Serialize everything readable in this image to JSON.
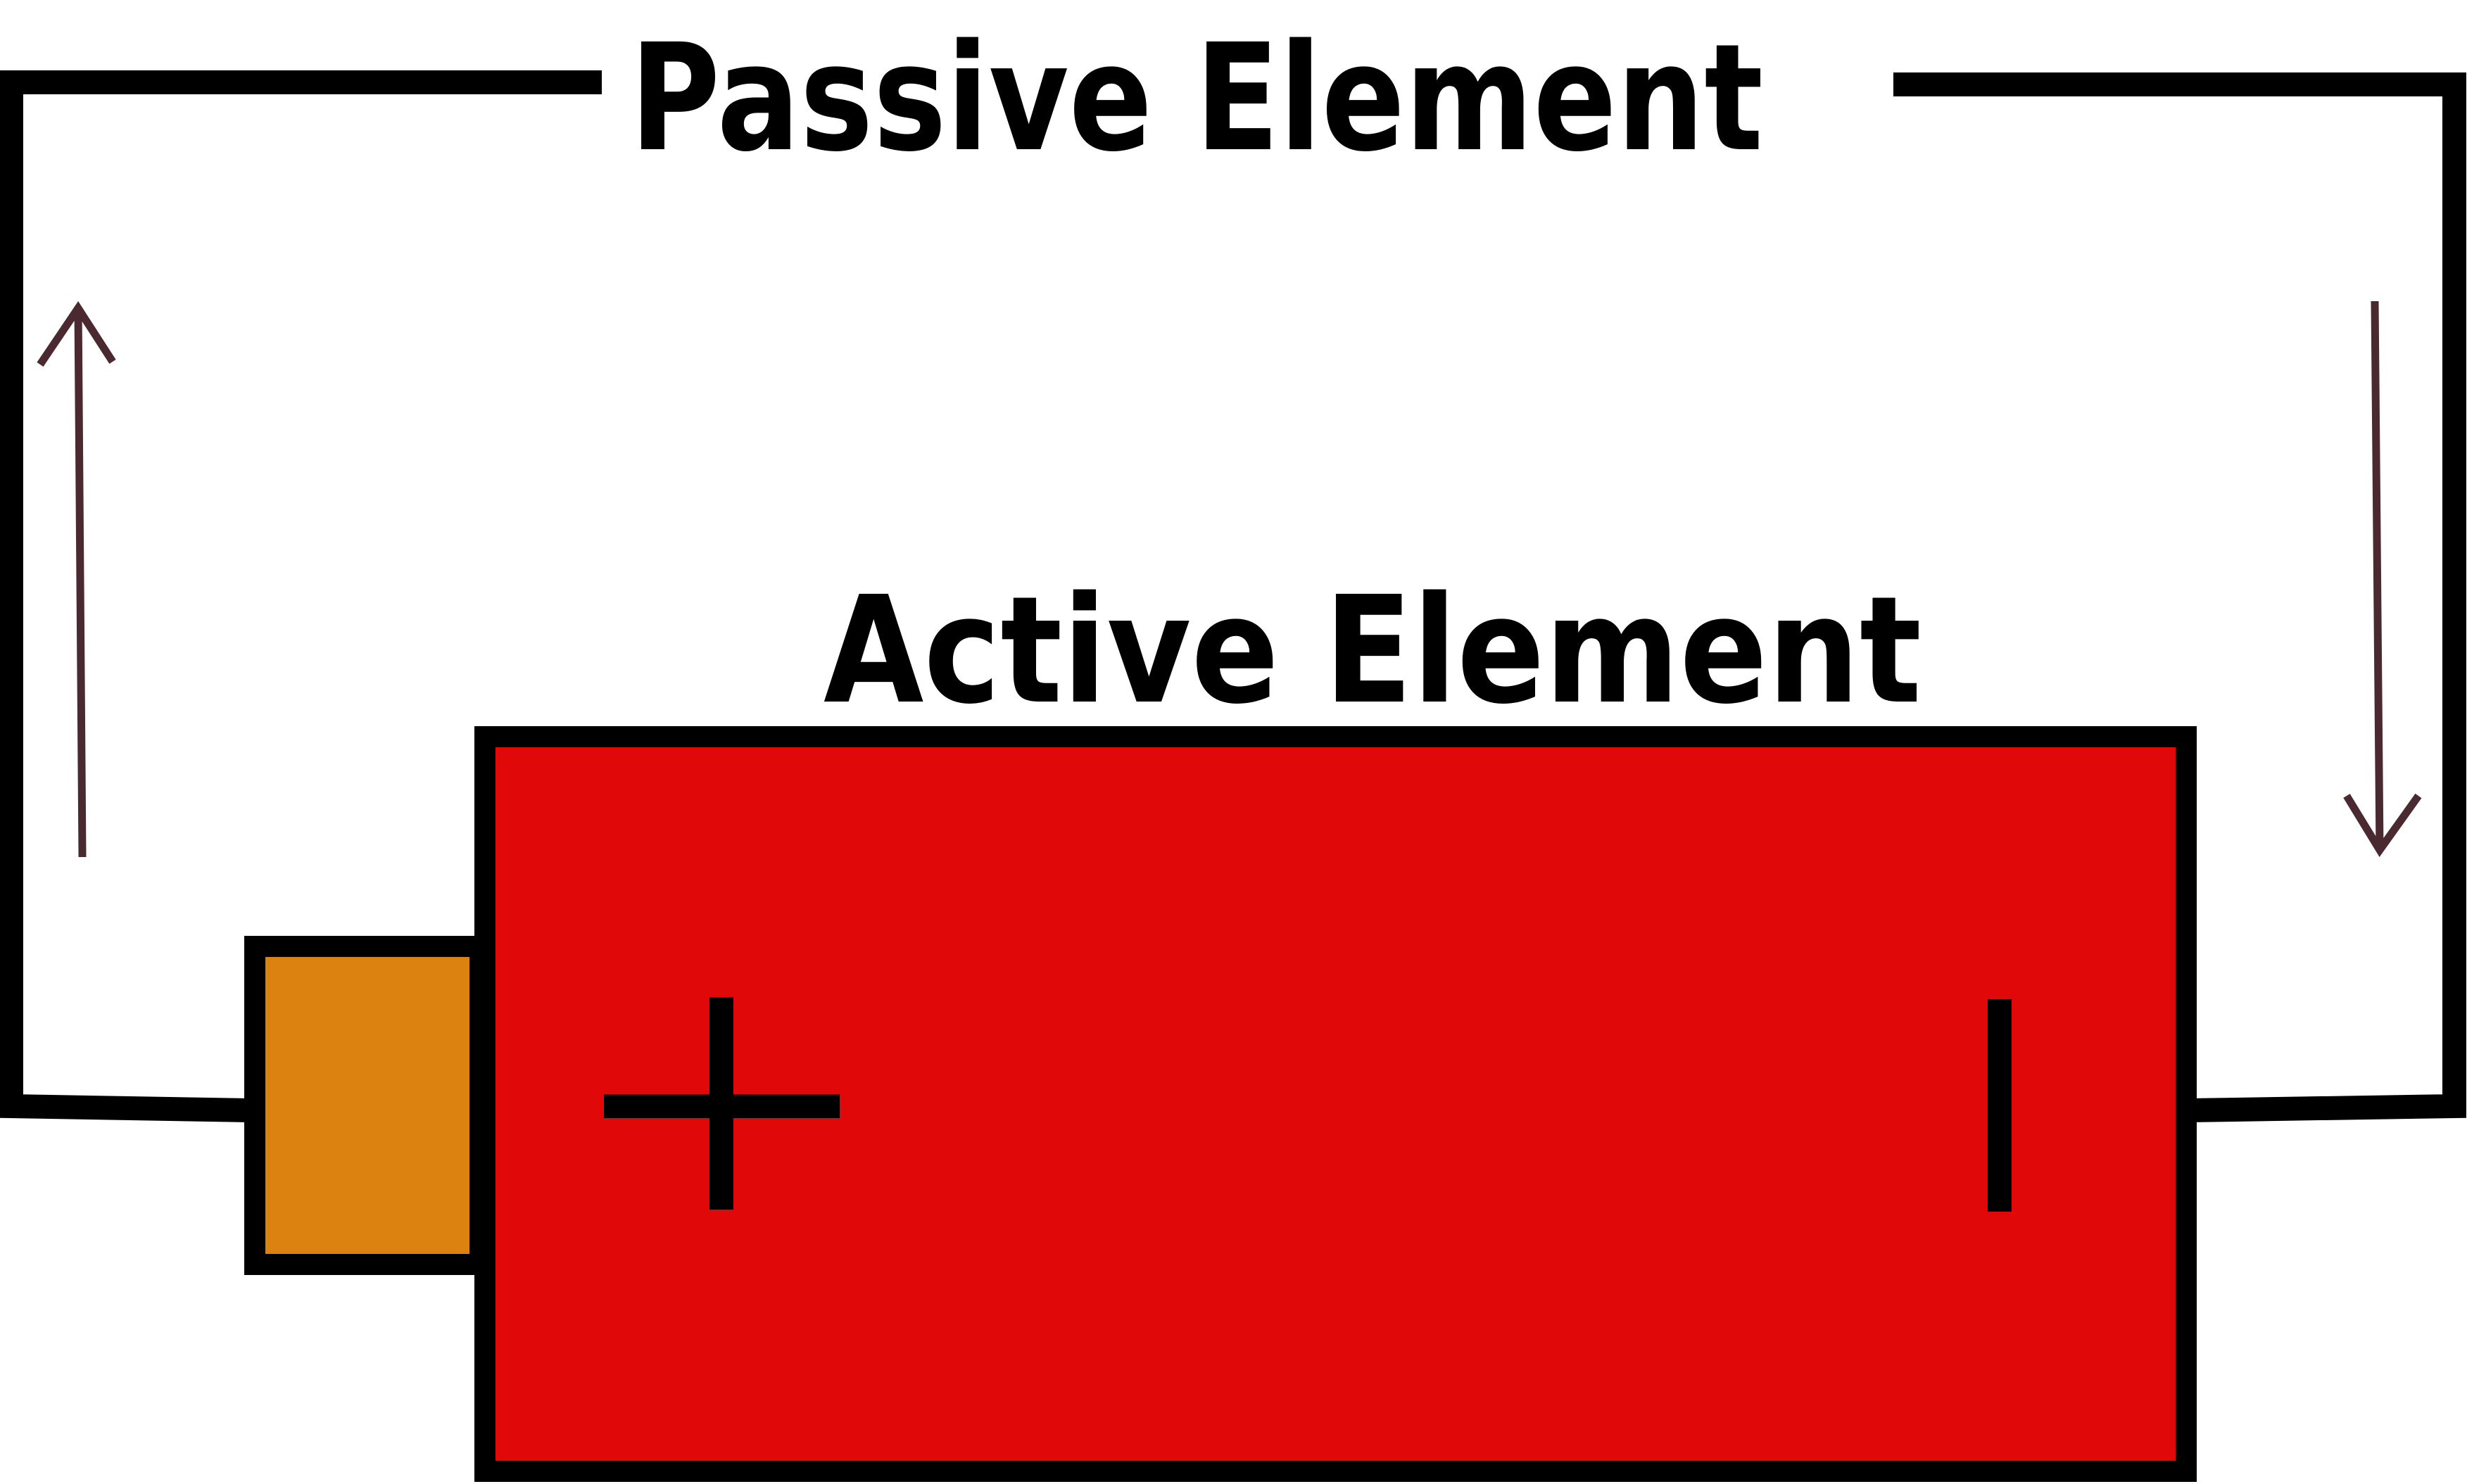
{
  "labels": {
    "passive": "Passive Element",
    "active": "Active Element"
  },
  "symbols": {
    "plus": "+",
    "minus": "−"
  },
  "colors": {
    "battery_body": "#E00808",
    "battery_cap": "#DC8210",
    "wire": "#000000",
    "arrow": "#4A2A30",
    "background": "#FFFFFF"
  }
}
